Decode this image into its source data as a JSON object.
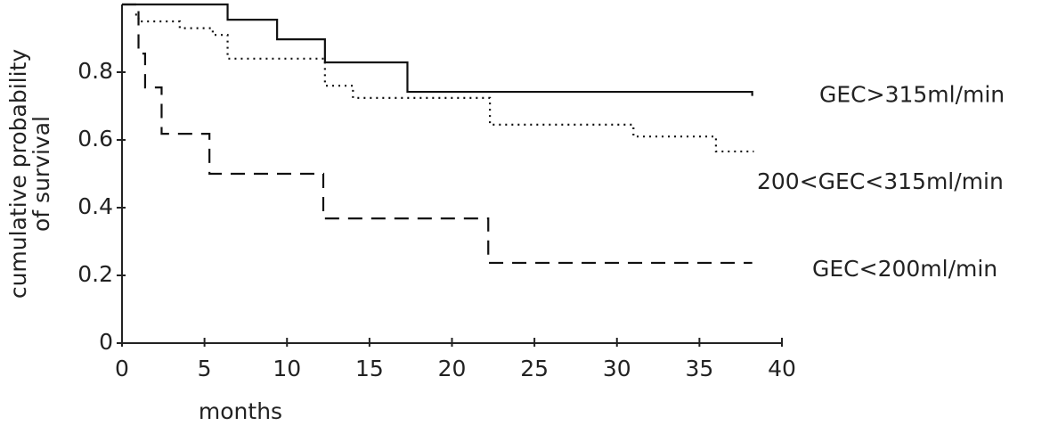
{
  "chart_data": {
    "type": "step",
    "ylabel": [
      "cumulative probability",
      "of survival"
    ],
    "xlabel": "months",
    "xlim": [
      0,
      40
    ],
    "xticks": [
      0,
      5,
      10,
      15,
      20,
      25,
      30,
      35,
      40
    ],
    "ylim": [
      0,
      1
    ],
    "yticks": [
      0,
      0.2,
      0.4,
      0.6,
      0.8
    ],
    "series": [
      {
        "name": "GEC>315ml/min",
        "color": "#111111",
        "line_style": "solid",
        "x": [
          0,
          6.4,
          9.4,
          12.3,
          17.3,
          38.2
        ],
        "values": [
          1.0,
          0.955,
          0.897,
          0.829,
          0.742,
          0.73
        ]
      },
      {
        "name": "200<GEC<315ml/min",
        "color": "#111111",
        "line_style": "dotted",
        "x": [
          0.8,
          1,
          3.5,
          5.5,
          6.4,
          12.3,
          14,
          22.3,
          31,
          36,
          38.3
        ],
        "values": [
          0.97,
          0.95,
          0.93,
          0.91,
          0.84,
          0.76,
          0.724,
          0.645,
          0.61,
          0.566,
          0.566
        ]
      },
      {
        "name": "GEC<200ml/min",
        "color": "#111111",
        "line_style": "dashed",
        "x": [
          0,
          1,
          1.4,
          2.4,
          5.3,
          12.2,
          22.2,
          38.2
        ],
        "values": [
          1.0,
          0.855,
          0.755,
          0.618,
          0.5,
          0.368,
          0.237,
          0.237
        ]
      }
    ]
  }
}
